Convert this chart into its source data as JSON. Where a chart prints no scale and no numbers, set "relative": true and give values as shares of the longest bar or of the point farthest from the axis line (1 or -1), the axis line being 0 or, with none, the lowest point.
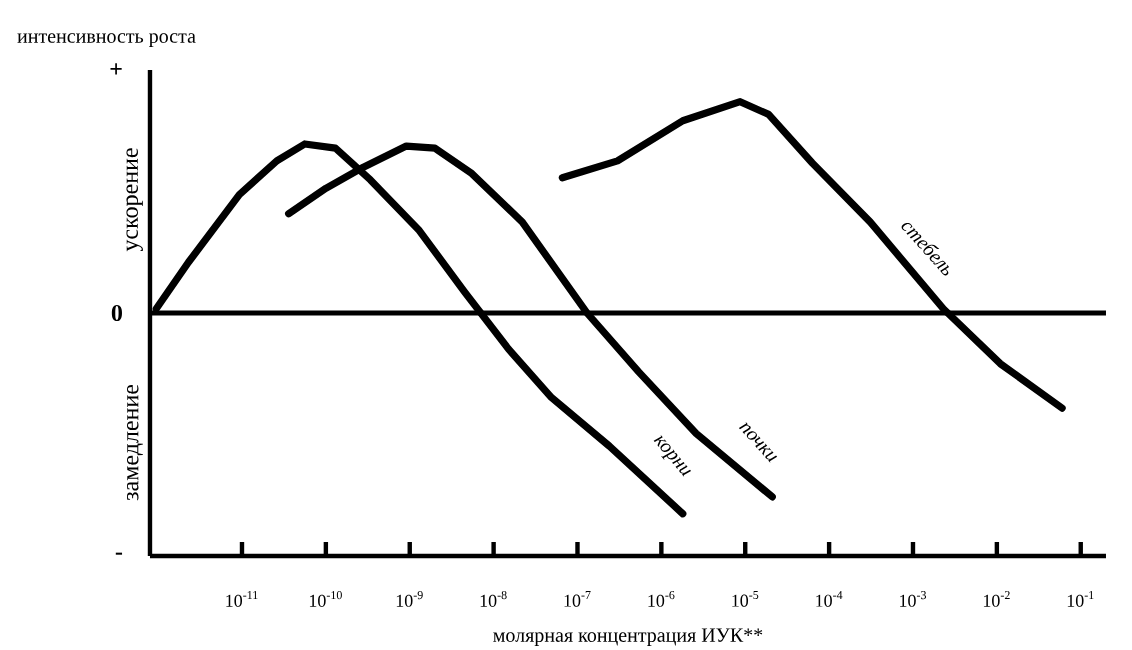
{
  "chart_data": {
    "type": "line",
    "relative": true,
    "ylabel": "интенсивность роста",
    "xlabel": "молярная концентрация ИУК**",
    "log": "x",
    "xlim": [
      8e-13,
      0.2
    ],
    "xticks": [
      {
        "value": 1e-11,
        "label": "10$^{-11}$"
      },
      {
        "value": 1e-10,
        "label": "10$^{-10}$"
      },
      {
        "value": 1e-09,
        "label": "10$^{-9}$"
      },
      {
        "value": 1e-08,
        "label": "10$^{-8}$"
      },
      {
        "value": 1e-07,
        "label": "10$^{-7}$"
      },
      {
        "value": 1e-06,
        "label": "10$^{-6}$"
      },
      {
        "value": 1e-05,
        "label": "10$^{-5}$"
      },
      {
        "value": 0.0001,
        "label": "10$^{-4}$"
      },
      {
        "value": 0.001,
        "label": "10$^{-3}$"
      },
      {
        "value": 0.01,
        "label": "10$^{-2}$"
      },
      {
        "value": 0.1,
        "label": "10$^{-1}$"
      }
    ],
    "annotations": [
      "ускорение",
      "замедление",
      "+",
      "0",
      "-"
    ],
    "ref_lines": [
      {
        "axis": "y",
        "value": 0,
        "color": "#000000"
      }
    ],
    "grid": false,
    "marker": "none",
    "line_style": "solid",
    "series": [
      {
        "name": "корни",
        "color": "#000000",
        "x": [
          9.5e-13,
          2.3e-12,
          9.3e-12,
          2.6e-11,
          5.6e-11,
          1.3e-10,
          3.4e-10,
          1.3e-09,
          4.5e-09,
          1.5e-08,
          4.9e-08,
          2.4e-07,
          1.8e-06
        ],
        "values": [
          0.02,
          0.24,
          0.56,
          0.72,
          0.8,
          0.78,
          0.63,
          0.39,
          0.1,
          -0.17,
          -0.4,
          -0.63,
          -0.95
        ]
      },
      {
        "name": "почки",
        "color": "#000000",
        "x": [
          3.6e-11,
          1e-10,
          2.8e-10,
          9.1e-10,
          2e-09,
          5.5e-09,
          2.2e-08,
          1.3e-07,
          5.4e-07,
          2.6e-06,
          2.1e-05
        ],
        "values": [
          0.47,
          0.59,
          0.69,
          0.79,
          0.78,
          0.66,
          0.43,
          0,
          -0.28,
          -0.57,
          -0.87
        ]
      },
      {
        "name": "стебель",
        "color": "#000000",
        "x": [
          6.6e-08,
          3e-07,
          1.8e-06,
          8.7e-06,
          1.9e-05,
          6.3e-05,
          0.00031,
          0.0023,
          0.011,
          0.06
        ],
        "values": [
          0.64,
          0.72,
          0.91,
          1,
          0.94,
          0.71,
          0.43,
          0.02,
          -0.24,
          -0.45
        ]
      }
    ]
  }
}
